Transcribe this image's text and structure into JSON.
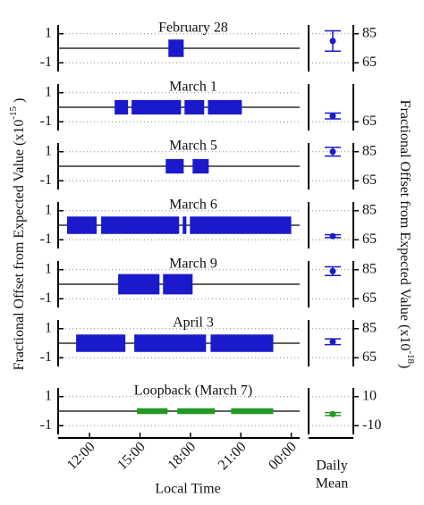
{
  "chart_data": {
    "type": "scatter",
    "xlabel": "Local Time",
    "xlim": [
      10.13,
      24.5
    ],
    "xticks": [
      {
        "value": 12,
        "label": "12:00"
      },
      {
        "value": 15,
        "label": "15:00"
      },
      {
        "value": 18,
        "label": "18:00"
      },
      {
        "value": 21,
        "label": "21:00"
      },
      {
        "value": 24,
        "label": "00:00"
      }
    ],
    "ylim": [
      -1.6,
      1.6
    ],
    "yticks": [
      -1,
      1
    ],
    "ylabel": [
      "Fractional Offset from Expected Value (x10",
      "-15",
      " )"
    ],
    "y2label": [
      "Fractional Offset from Expected Value  (x10",
      "-18",
      ")"
    ],
    "mean_label": [
      "Daily",
      "Mean"
    ],
    "grid": true,
    "panels": [
      {
        "title": "February 28",
        "color": "#1a1acc",
        "segments": [
          {
            "x": [
              16.69,
              17.6
            ],
            "y": [
              -0.6,
              0.6
            ]
          }
        ],
        "mean": 80,
        "error": 7,
        "y2lim": [
          59,
          91
        ],
        "y2ticks": [
          65,
          85
        ]
      },
      {
        "title": "March 1",
        "color": "#1a1acc",
        "segments": [
          {
            "x": [
              13.49,
              14.29
            ],
            "y": [
              -0.5,
              0.5
            ]
          },
          {
            "x": [
              14.5,
              17.44
            ],
            "y": [
              -0.5,
              0.5
            ]
          },
          {
            "x": [
              17.65,
              18.82
            ],
            "y": [
              -0.5,
              0.5
            ]
          },
          {
            "x": [
              19.04,
              21.06
            ],
            "y": [
              -0.5,
              0.5
            ]
          }
        ],
        "mean": 69,
        "error": 2,
        "y2lim": [
          59,
          91
        ],
        "y2ticks": [
          65
        ]
      },
      {
        "title": "March 5",
        "color": "#1a1acc",
        "segments": [
          {
            "x": [
              16.53,
              17.6
            ],
            "y": [
              -0.5,
              0.5
            ]
          },
          {
            "x": [
              18.13,
              19.09
            ],
            "y": [
              -0.5,
              0.5
            ]
          }
        ],
        "mean": 85,
        "error": 3,
        "y2lim": [
          59,
          91
        ],
        "y2ticks": [
          65,
          85
        ]
      },
      {
        "title": "March 6",
        "color": "#1a1acc",
        "segments": [
          {
            "x": [
              10.66,
              12.42
            ],
            "y": [
              -0.6,
              0.6
            ]
          },
          {
            "x": [
              12.69,
              17.33
            ],
            "y": [
              -0.6,
              0.6
            ]
          },
          {
            "x": [
              17.54,
              17.76
            ],
            "y": [
              -0.6,
              0.6
            ]
          },
          {
            "x": [
              17.97,
              24.0
            ],
            "y": [
              -0.6,
              0.6
            ]
          }
        ],
        "mean": 67.5,
        "error": 1,
        "y2lim": [
          59,
          91
        ],
        "y2ticks": [
          65,
          85
        ]
      },
      {
        "title": "March 9",
        "color": "#1a1acc",
        "segments": [
          {
            "x": [
              13.7,
              16.16
            ],
            "y": [
              -0.7,
              0.7
            ]
          },
          {
            "x": [
              16.37,
              18.13
            ],
            "y": [
              -0.7,
              0.7
            ]
          }
        ],
        "mean": 84,
        "error": 3,
        "y2lim": [
          59,
          91
        ],
        "y2ticks": [
          65,
          85
        ]
      },
      {
        "title": "April 3",
        "color": "#1a1acc",
        "segments": [
          {
            "x": [
              11.2,
              14.13
            ],
            "y": [
              -0.6,
              0.6
            ]
          },
          {
            "x": [
              14.66,
              18.93
            ],
            "y": [
              -0.6,
              0.6
            ]
          },
          {
            "x": [
              19.2,
              22.93
            ],
            "y": [
              -0.6,
              0.6
            ]
          }
        ],
        "mean": 76,
        "error": 2,
        "y2lim": [
          59,
          91
        ],
        "y2ticks": [
          65,
          85
        ]
      },
      {
        "title": "Loopback (March 7)",
        "color": "#229922",
        "segments": [
          {
            "x": [
              14.82,
              16.64
            ],
            "y": [
              -0.2,
              0.2
            ]
          },
          {
            "x": [
              17.22,
              19.46
            ],
            "y": [
              -0.2,
              0.2
            ]
          },
          {
            "x": [
              20.42,
              22.93
            ],
            "y": [
              -0.2,
              0.2
            ]
          }
        ],
        "mean": -2,
        "error": 1,
        "y2lim": [
          -16,
          16
        ],
        "y2ticks": [
          -10,
          10
        ]
      }
    ]
  }
}
